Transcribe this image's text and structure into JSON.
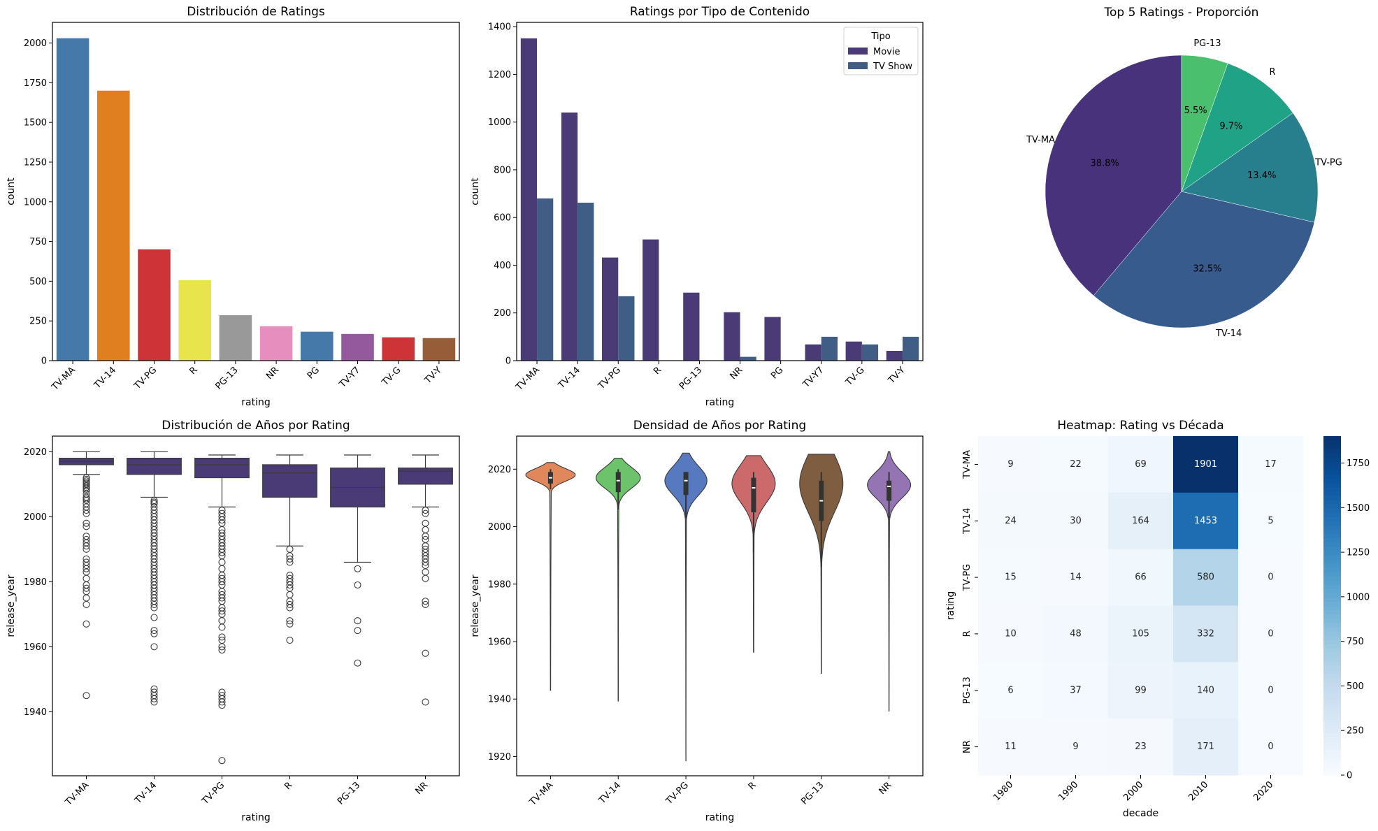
{
  "chart_data": [
    {
      "id": "ratings-distribution",
      "type": "bar",
      "title": "Distribución de Ratings",
      "xlabel": "rating",
      "ylabel": "count",
      "categories": [
        "TV-MA",
        "TV-14",
        "TV-PG",
        "R",
        "PG-13",
        "NR",
        "PG",
        "TV-Y7",
        "TV-G",
        "TV-Y"
      ],
      "values": [
        2030,
        1700,
        701,
        507,
        286,
        217,
        182,
        168,
        147,
        142
      ],
      "colors": [
        "#4479a9",
        "#e07f1f",
        "#cd3337",
        "#e7e54b",
        "#999999",
        "#e68fbf",
        "#4479a9",
        "#93599c",
        "#cd3337",
        "#975c38"
      ],
      "ylim": [
        0,
        2130
      ],
      "yticks": [
        0,
        250,
        500,
        750,
        1000,
        1250,
        1500,
        1750,
        2000
      ]
    },
    {
      "id": "ratings-by-type",
      "type": "bar",
      "title": "Ratings por Tipo de Contenido",
      "xlabel": "rating",
      "ylabel": "count",
      "categories": [
        "TV-MA",
        "TV-14",
        "TV-PG",
        "R",
        "PG-13",
        "NR",
        "PG",
        "TV-Y7",
        "TV-G",
        "TV-Y"
      ],
      "series": [
        {
          "name": "Movie",
          "color": "#4a3a75",
          "values": [
            1351,
            1040,
            432,
            508,
            285,
            203,
            183,
            68,
            80,
            41
          ]
        },
        {
          "name": "TV Show",
          "color": "#405e85",
          "values": [
            680,
            662,
            270,
            0,
            0,
            16,
            0,
            100,
            68,
            100
          ]
        }
      ],
      "legend": {
        "title": "Tipo",
        "position": "top-right"
      },
      "ylim": [
        0,
        1418
      ],
      "yticks": [
        0,
        200,
        400,
        600,
        800,
        1000,
        1200,
        1400
      ]
    },
    {
      "id": "top5-proportion",
      "type": "pie",
      "title": "Top 5 Ratings - Proporción",
      "labels": [
        "TV-MA",
        "TV-14",
        "TV-PG",
        "R",
        "PG-13"
      ],
      "values": [
        38.8,
        32.5,
        13.4,
        9.7,
        5.5
      ],
      "pct_labels": [
        "38.8%",
        "32.5%",
        "13.4%",
        "9.7%",
        "5.5%"
      ],
      "colors": [
        "#48327c",
        "#375b8c",
        "#277f8e",
        "#20a286",
        "#4ac06e"
      ],
      "start_angle": 90,
      "direction": "counterclockwise"
    },
    {
      "id": "years-by-rating-box",
      "type": "box",
      "title": "Distribución de Años por Rating",
      "xlabel": "rating",
      "ylabel": "release_year",
      "categories": [
        "TV-MA",
        "TV-14",
        "TV-PG",
        "R",
        "PG-13",
        "NR"
      ],
      "color": "#4a3a75",
      "boxes": [
        {
          "whislo": 2013,
          "q1": 2016,
          "med": 2017,
          "q3": 2018,
          "whishi": 2020,
          "fliers": [
            2012,
            2011.5,
            2011,
            2010.5,
            2010,
            2009.5,
            2009,
            2008.5,
            2008,
            2007,
            2006,
            2005.5,
            2005,
            2004,
            2003,
            2002,
            2001,
            1998,
            1997,
            1994,
            1993,
            1992,
            1991,
            1990,
            1987,
            1986,
            1985,
            1984,
            1983,
            1981,
            1979,
            1978,
            1977,
            1975,
            1973,
            1967,
            1945
          ]
        },
        {
          "whislo": 2006,
          "q1": 2013,
          "med": 2016,
          "q3": 2018,
          "whishi": 2020,
          "fliers": [
            2005,
            2004.5,
            2004,
            2003,
            2002,
            2001,
            2000,
            1999,
            1998,
            1997,
            1996,
            1995,
            1994,
            1993,
            1992,
            1991,
            1990,
            1989,
            1988,
            1987,
            1986,
            1985,
            1984,
            1983,
            1982,
            1981,
            1980,
            1979,
            1978,
            1977,
            1976,
            1975,
            1974,
            1973,
            1972,
            1969,
            1965,
            1964,
            1960,
            1947,
            1946,
            1945,
            1944,
            1943
          ]
        },
        {
          "whislo": 2003,
          "q1": 2012,
          "med": 2016,
          "q3": 2018,
          "whishi": 2019,
          "fliers": [
            2002,
            2001,
            2000,
            1999,
            1998,
            1996,
            1995,
            1994,
            1993,
            1992,
            1991,
            1990,
            1989,
            1988,
            1986,
            1984,
            1982,
            1981,
            1980,
            1979,
            1977,
            1976,
            1975,
            1974,
            1972,
            1971,
            1970,
            1968,
            1966,
            1963,
            1962,
            1960,
            1959,
            1946,
            1945,
            1944,
            1943,
            1942,
            1925
          ]
        },
        {
          "whislo": 1991,
          "q1": 2006,
          "med": 2013.5,
          "q3": 2016,
          "whishi": 2019,
          "fliers": [
            1990,
            1988,
            1987,
            1986,
            1982,
            1981,
            1980,
            1979,
            1978,
            1976,
            1974,
            1973,
            1972,
            1968,
            1967,
            1962
          ]
        },
        {
          "whislo": 1986,
          "q1": 2003,
          "med": 2009,
          "q3": 2015,
          "whishi": 2019,
          "fliers": [
            1984,
            1979,
            1968,
            1965,
            1955
          ]
        },
        {
          "whislo": 2003,
          "q1": 2010,
          "med": 2014,
          "q3": 2015,
          "whishi": 2019,
          "fliers": [
            2002,
            2001,
            1998,
            1996,
            1994,
            1993,
            1991,
            1990,
            1989,
            1988,
            1987,
            1986,
            1985,
            1983,
            1981,
            1974,
            1973,
            1958,
            1943
          ]
        }
      ],
      "ylim": [
        1920.3,
        2024.8
      ],
      "yticks": [
        1940,
        1960,
        1980,
        2000,
        2020
      ]
    },
    {
      "id": "years-by-rating-violin",
      "type": "violin",
      "title": "Densidad de Años por Rating",
      "xlabel": "rating",
      "ylabel": "release_year",
      "categories": [
        "TV-MA",
        "TV-14",
        "TV-PG",
        "R",
        "PG-13",
        "NR"
      ],
      "colors": [
        "#e0885c",
        "#6dc36c",
        "#5679c0",
        "#cc6a6b",
        "#7f5d41",
        "#9474b2"
      ],
      "violins": [
        {
          "min": 1943,
          "max": 2022.3,
          "q1": 2015,
          "med": 2017,
          "q3": 2019,
          "wlo": 2013,
          "whi": 2020,
          "mode": 2018,
          "width": 0.92,
          "spread": 2.2
        },
        {
          "min": 1939.3,
          "max": 2023.8,
          "q1": 2012,
          "med": 2016,
          "q3": 2019,
          "wlo": 2006,
          "whi": 2020,
          "mode": 2017,
          "width": 0.82,
          "spread": 3.6
        },
        {
          "min": 1918.5,
          "max": 2025.6,
          "q1": 2011,
          "med": 2016,
          "q3": 2019,
          "wlo": 2003,
          "whi": 2019,
          "mode": 2016,
          "width": 0.78,
          "spread": 5
        },
        {
          "min": 1956.3,
          "max": 2024.7,
          "q1": 2005,
          "med": 2013.5,
          "q3": 2017,
          "wlo": 1991,
          "whi": 2019,
          "mode": 2015,
          "width": 0.8,
          "spread": 6.5
        },
        {
          "min": 1948.9,
          "max": 2025.2,
          "q1": 2002,
          "med": 2009,
          "q3": 2016,
          "wlo": 1986,
          "whi": 2019,
          "mode": 2015,
          "width": 0.8,
          "spread": 10
        },
        {
          "min": 1935.8,
          "max": 2026.1,
          "q1": 2009,
          "med": 2014,
          "q3": 2016,
          "wlo": 2003,
          "whi": 2019,
          "mode": 2014.5,
          "width": 0.8,
          "spread": 4.5
        }
      ],
      "ylim": [
        1913.3,
        2031.5
      ],
      "yticks": [
        1920,
        1940,
        1960,
        1980,
        2000,
        2020
      ]
    },
    {
      "id": "rating-decade-heatmap",
      "type": "heatmap",
      "title": "Heatmap: Rating vs Década",
      "xlabel": "decade",
      "ylabel": "rating",
      "x": [
        "1980",
        "1990",
        "2000",
        "2010",
        "2020"
      ],
      "y": [
        "TV-MA",
        "TV-14",
        "TV-PG",
        "R",
        "PG-13",
        "NR"
      ],
      "values": [
        [
          9,
          22,
          69,
          1901,
          17
        ],
        [
          24,
          30,
          164,
          1453,
          5
        ],
        [
          15,
          14,
          66,
          580,
          0
        ],
        [
          10,
          48,
          105,
          332,
          0
        ],
        [
          6,
          37,
          99,
          140,
          0
        ],
        [
          11,
          9,
          23,
          171,
          0
        ]
      ],
      "colormap": "Blues",
      "vmin": 0,
      "vmax": 1901,
      "colorbar_ticks": [
        0,
        250,
        500,
        750,
        1000,
        1250,
        1500,
        1750
      ]
    }
  ]
}
